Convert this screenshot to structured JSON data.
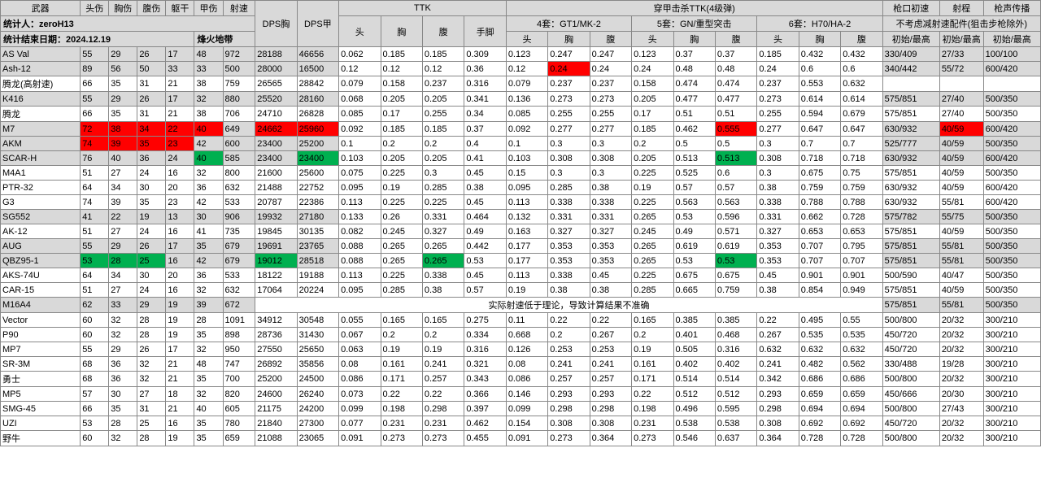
{
  "meta": {
    "title_weapon": "武器",
    "stat_person_label": "统计人：zeroH13",
    "stat_date_label": "统计结束日期：2024.12.19",
    "map_label": "烽火地带"
  },
  "headers": {
    "dmg": [
      "头伤",
      "胸伤",
      "腹伤",
      "躯干",
      "甲伤",
      "射速"
    ],
    "dps": [
      "DPS胸",
      "DPS甲"
    ],
    "ttk_group": "TTK",
    "ttk_sub": [
      "头",
      "胸",
      "腹",
      "手脚"
    ],
    "armor_group": "穿甲击杀TTK(4级弹)",
    "armor_set4": "4套：GT1/MK-2",
    "armor_set5": "5套：GN/重型突击",
    "armor_set6": "6套：H70/HA-2",
    "armor_sub": [
      "头",
      "胸",
      "腹"
    ],
    "velocity": "枪口初速",
    "range": "射程",
    "sound": "枪声传播",
    "velocity_note": "不考虑减射速配件(狙击步枪除外)",
    "init_max": "初始/最高"
  },
  "note_m16": "实际射速低于理论，导致计算结果不准确",
  "rows": [
    {
      "name": "AS Val",
      "gray": true,
      "dmg": [
        55,
        29,
        26,
        17,
        48,
        972
      ],
      "dps": [
        28188,
        46656
      ],
      "ttk": [
        0.062,
        0.185,
        0.185,
        0.309
      ],
      "a4": [
        0.123,
        0.247,
        0.247
      ],
      "a5": [
        0.123,
        0.37,
        0.37
      ],
      "a6": [
        0.185,
        0.432,
        0.432
      ],
      "vel": "330/409",
      "rng": "27/33",
      "snd": "100/100",
      "hl": {}
    },
    {
      "name": "Ash-12",
      "gray": true,
      "dmg": [
        89,
        56,
        50,
        33,
        33,
        500
      ],
      "dps": [
        28000,
        16500
      ],
      "ttk": [
        0.12,
        0.12,
        0.12,
        0.36
      ],
      "a4": [
        0.12,
        0.24,
        0.24
      ],
      "a5": [
        0.24,
        0.48,
        0.48
      ],
      "a6": [
        0.24,
        0.6,
        0.6
      ],
      "vel": "340/442",
      "rng": "55/72",
      "snd": "600/420",
      "hl": {
        "a4.1": "red"
      }
    },
    {
      "name": "腾龙(高射速)",
      "gray": false,
      "dmg": [
        66,
        35,
        31,
        21,
        38,
        759
      ],
      "dps": [
        26565,
        28842
      ],
      "ttk": [
        0.079,
        0.158,
        0.237,
        0.316
      ],
      "a4": [
        0.079,
        0.237,
        0.237
      ],
      "a5": [
        0.158,
        0.474,
        0.474
      ],
      "a6": [
        0.237,
        0.553,
        0.632
      ],
      "vel": "",
      "rng": "",
      "snd": "",
      "hl": {}
    },
    {
      "name": "K416",
      "gray": true,
      "dmg": [
        55,
        29,
        26,
        17,
        32,
        880
      ],
      "dps": [
        25520,
        28160
      ],
      "ttk": [
        0.068,
        0.205,
        0.205,
        0.341
      ],
      "a4": [
        0.136,
        0.273,
        0.273
      ],
      "a5": [
        0.205,
        0.477,
        0.477
      ],
      "a6": [
        0.273,
        0.614,
        0.614
      ],
      "vel": "575/851",
      "rng": "27/40",
      "snd": "500/350",
      "hl": {}
    },
    {
      "name": "腾龙",
      "gray": false,
      "dmg": [
        66,
        35,
        31,
        21,
        38,
        706
      ],
      "dps": [
        24710,
        26828
      ],
      "ttk": [
        0.085,
        0.17,
        0.255,
        0.34
      ],
      "a4": [
        0.085,
        0.255,
        0.255
      ],
      "a5": [
        0.17,
        0.51,
        0.51
      ],
      "a6": [
        0.255,
        0.594,
        0.679
      ],
      "vel": "575/851",
      "rng": "27/40",
      "snd": "500/350",
      "hl": {}
    },
    {
      "name": "M7",
      "gray": true,
      "dmg": [
        72,
        38,
        34,
        22,
        40,
        649
      ],
      "dps": [
        24662,
        25960
      ],
      "ttk": [
        0.092,
        0.185,
        0.185,
        0.37
      ],
      "a4": [
        0.092,
        0.277,
        0.277
      ],
      "a5": [
        0.185,
        0.462,
        0.555
      ],
      "a6": [
        0.277,
        0.647,
        0.647
      ],
      "vel": "630/932",
      "rng": "40/59",
      "snd": "600/420",
      "hl": {
        "dmg.0": "red",
        "dmg.1": "red",
        "dmg.2": "red",
        "dmg.3": "red",
        "dmg.4": "red",
        "dps.0": "red",
        "dps.1": "red",
        "a5.2": "red",
        "rng": "red"
      }
    },
    {
      "name": "AKM",
      "gray": true,
      "dmg": [
        74,
        39,
        35,
        23,
        42,
        600
      ],
      "dps": [
        23400,
        25200
      ],
      "ttk": [
        0.1,
        0.2,
        0.2,
        0.4
      ],
      "a4": [
        0.1,
        0.3,
        0.3
      ],
      "a5": [
        0.2,
        0.5,
        0.5
      ],
      "a6": [
        0.3,
        0.7,
        0.7
      ],
      "vel": "525/777",
      "rng": "40/59",
      "snd": "500/350",
      "hl": {
        "dmg.0": "red",
        "dmg.1": "red",
        "dmg.2": "red",
        "dmg.3": "red"
      }
    },
    {
      "name": "SCAR-H",
      "gray": true,
      "dmg": [
        76,
        40,
        36,
        24,
        40,
        585
      ],
      "dps": [
        23400,
        23400
      ],
      "ttk": [
        0.103,
        0.205,
        0.205,
        0.41
      ],
      "a4": [
        0.103,
        0.308,
        0.308
      ],
      "a5": [
        0.205,
        0.513,
        0.513
      ],
      "a6": [
        0.308,
        0.718,
        0.718
      ],
      "vel": "630/932",
      "rng": "40/59",
      "snd": "600/420",
      "hl": {
        "dmg.4": "green",
        "dps.1": "green",
        "a5.2": "green"
      }
    },
    {
      "name": "M4A1",
      "gray": false,
      "dmg": [
        51,
        27,
        24,
        16,
        32,
        800
      ],
      "dps": [
        21600,
        25600
      ],
      "ttk": [
        0.075,
        0.225,
        0.3,
        0.45
      ],
      "a4": [
        0.15,
        0.3,
        0.3
      ],
      "a5": [
        0.225,
        0.525,
        0.6
      ],
      "a6": [
        0.3,
        0.675,
        0.75
      ],
      "vel": "575/851",
      "rng": "40/59",
      "snd": "500/350",
      "hl": {}
    },
    {
      "name": "PTR-32",
      "gray": false,
      "dmg": [
        64,
        34,
        30,
        20,
        36,
        632
      ],
      "dps": [
        21488,
        22752
      ],
      "ttk": [
        0.095,
        0.19,
        0.285,
        0.38
      ],
      "a4": [
        0.095,
        0.285,
        0.38
      ],
      "a5": [
        0.19,
        0.57,
        0.57
      ],
      "a6": [
        0.38,
        0.759,
        0.759
      ],
      "vel": "630/932",
      "rng": "40/59",
      "snd": "600/420",
      "hl": {}
    },
    {
      "name": "G3",
      "gray": false,
      "dmg": [
        74,
        39,
        35,
        23,
        42,
        533
      ],
      "dps": [
        20787,
        22386
      ],
      "ttk": [
        0.113,
        0.225,
        0.225,
        0.45
      ],
      "a4": [
        0.113,
        0.338,
        0.338
      ],
      "a5": [
        0.225,
        0.563,
        0.563
      ],
      "a6": [
        0.338,
        0.788,
        0.788
      ],
      "vel": "630/932",
      "rng": "55/81",
      "snd": "600/420",
      "hl": {}
    },
    {
      "name": "SG552",
      "gray": true,
      "dmg": [
        41,
        22,
        19,
        13,
        30,
        906
      ],
      "dps": [
        19932,
        27180
      ],
      "ttk": [
        0.133,
        0.26,
        0.331,
        0.464
      ],
      "a4": [
        0.132,
        0.331,
        0.331
      ],
      "a5": [
        0.265,
        0.53,
        0.596
      ],
      "a6": [
        0.331,
        0.662,
        0.728
      ],
      "vel": "575/782",
      "rng": "55/75",
      "snd": "500/350",
      "hl": {}
    },
    {
      "name": "AK-12",
      "gray": false,
      "dmg": [
        51,
        27,
        24,
        16,
        41,
        735
      ],
      "dps": [
        19845,
        30135
      ],
      "ttk": [
        0.082,
        0.245,
        0.327,
        0.49
      ],
      "a4": [
        0.163,
        0.327,
        0.327
      ],
      "a5": [
        0.245,
        0.49,
        0.571
      ],
      "a6": [
        0.327,
        0.653,
        0.653
      ],
      "vel": "575/851",
      "rng": "40/59",
      "snd": "500/350",
      "hl": {}
    },
    {
      "name": "AUG",
      "gray": true,
      "dmg": [
        55,
        29,
        26,
        17,
        35,
        679
      ],
      "dps": [
        19691,
        23765
      ],
      "ttk": [
        0.088,
        0.265,
        0.265,
        0.442
      ],
      "a4": [
        0.177,
        0.353,
        0.353
      ],
      "a5": [
        0.265,
        0.619,
        0.619
      ],
      "a6": [
        0.353,
        0.707,
        0.795
      ],
      "vel": "575/851",
      "rng": "55/81",
      "snd": "500/350",
      "hl": {}
    },
    {
      "name": "QBZ95-1",
      "gray": true,
      "dmg": [
        53,
        28,
        25,
        16,
        42,
        679
      ],
      "dps": [
        19012,
        28518
      ],
      "ttk": [
        0.088,
        0.265,
        0.265,
        0.53
      ],
      "a4": [
        0.177,
        0.353,
        0.353
      ],
      "a5": [
        0.265,
        0.53,
        0.53
      ],
      "a6": [
        0.353,
        0.707,
        0.707
      ],
      "vel": "575/851",
      "rng": "55/81",
      "snd": "500/350",
      "hl": {
        "dmg.0": "green",
        "dmg.1": "green",
        "dmg.2": "green",
        "dps.0": "green",
        "ttk.2": "green",
        "a5.2": "green"
      }
    },
    {
      "name": "AKS-74U",
      "gray": false,
      "dmg": [
        64,
        34,
        30,
        20,
        36,
        533
      ],
      "dps": [
        18122,
        19188
      ],
      "ttk": [
        0.113,
        0.225,
        0.338,
        0.45
      ],
      "a4": [
        0.113,
        0.338,
        0.45
      ],
      "a5": [
        0.225,
        0.675,
        0.675
      ],
      "a6": [
        0.45,
        0.901,
        0.901
      ],
      "vel": "500/590",
      "rng": "40/47",
      "snd": "500/350",
      "hl": {}
    },
    {
      "name": "CAR-15",
      "gray": false,
      "dmg": [
        51,
        27,
        24,
        16,
        32,
        632
      ],
      "dps": [
        17064,
        20224
      ],
      "ttk": [
        0.095,
        0.285,
        0.38,
        0.57
      ],
      "a4": [
        0.19,
        0.38,
        0.38
      ],
      "a5": [
        0.285,
        0.665,
        0.759
      ],
      "a6": [
        0.38,
        0.854,
        0.949
      ],
      "vel": "575/851",
      "rng": "40/59",
      "snd": "500/350",
      "hl": {}
    },
    {
      "name": "M16A4",
      "gray": true,
      "dmg": [
        62,
        33,
        29,
        19,
        39,
        672
      ],
      "dps": [
        "NOTE"
      ],
      "ttk": [],
      "a4": [],
      "a5": [],
      "a6": [],
      "vel": "575/851",
      "rng": "55/81",
      "snd": "500/350",
      "hl": {},
      "note": true
    },
    {
      "name": "Vector",
      "gray": false,
      "dmg": [
        60,
        32,
        28,
        19,
        28,
        1091
      ],
      "dps": [
        34912,
        30548
      ],
      "ttk": [
        0.055,
        0.165,
        0.165,
        0.275
      ],
      "a4": [
        0.11,
        0.22,
        0.22
      ],
      "a5": [
        0.165,
        0.385,
        0.385
      ],
      "a6": [
        0.22,
        0.495,
        0.55
      ],
      "vel": "500/800",
      "rng": "20/32",
      "snd": "300/210",
      "hl": {}
    },
    {
      "name": "P90",
      "gray": false,
      "dmg": [
        60,
        32,
        28,
        19,
        35,
        898
      ],
      "dps": [
        28736,
        31430
      ],
      "ttk": [
        0.067,
        0.2,
        0.2,
        0.334
      ],
      "a4": [
        0.668,
        0.2,
        0.267
      ],
      "a5": [
        0.2,
        0.401,
        0.468
      ],
      "a6": [
        0.267,
        0.535,
        0.535
      ],
      "vel": "450/720",
      "rng": "20/32",
      "snd": "300/210",
      "hl": {}
    },
    {
      "name": "MP7",
      "gray": false,
      "dmg": [
        55,
        29,
        26,
        17,
        32,
        950
      ],
      "dps": [
        27550,
        25650
      ],
      "ttk": [
        0.063,
        0.19,
        0.19,
        0.316
      ],
      "a4": [
        0.126,
        0.253,
        0.253
      ],
      "a5": [
        0.19,
        0.505,
        0.316
      ],
      "a6": [
        0.632,
        0.632,
        0.632
      ],
      "vel": "450/720",
      "rng": "20/32",
      "snd": "300/210",
      "hl": {}
    },
    {
      "name": "SR-3M",
      "gray": false,
      "dmg": [
        68,
        36,
        32,
        21,
        48,
        747
      ],
      "dps": [
        26892,
        35856
      ],
      "ttk": [
        0.08,
        0.161,
        0.241,
        0.321
      ],
      "a4": [
        0.08,
        0.241,
        0.241
      ],
      "a5": [
        0.161,
        0.402,
        0.402
      ],
      "a6": [
        0.241,
        0.482,
        0.562
      ],
      "vel": "330/488",
      "rng": "19/28",
      "snd": "300/210",
      "hl": {}
    },
    {
      "name": "勇士",
      "gray": false,
      "dmg": [
        68,
        36,
        32,
        21,
        35,
        700
      ],
      "dps": [
        25200,
        24500
      ],
      "ttk": [
        0.086,
        0.171,
        0.257,
        0.343
      ],
      "a4": [
        0.086,
        0.257,
        0.257
      ],
      "a5": [
        0.171,
        0.514,
        0.514
      ],
      "a6": [
        0.342,
        0.686,
        0.686
      ],
      "vel": "500/800",
      "rng": "20/32",
      "snd": "300/210",
      "hl": {}
    },
    {
      "name": "MP5",
      "gray": false,
      "dmg": [
        57,
        30,
        27,
        18,
        32,
        820
      ],
      "dps": [
        24600,
        26240
      ],
      "ttk": [
        0.073,
        0.22,
        0.22,
        0.366
      ],
      "a4": [
        0.146,
        0.293,
        0.293
      ],
      "a5": [
        0.22,
        0.512,
        0.512
      ],
      "a6": [
        0.293,
        0.659,
        0.659
      ],
      "vel": "450/666",
      "rng": "20/30",
      "snd": "300/210",
      "hl": {}
    },
    {
      "name": "SMG-45",
      "gray": false,
      "dmg": [
        66,
        35,
        31,
        21,
        40,
        605
      ],
      "dps": [
        21175,
        24200
      ],
      "ttk": [
        0.099,
        0.198,
        0.298,
        0.397
      ],
      "a4": [
        0.099,
        0.298,
        0.298
      ],
      "a5": [
        0.198,
        0.496,
        0.595
      ],
      "a6": [
        0.298,
        0.694,
        0.694
      ],
      "vel": "500/800",
      "rng": "27/43",
      "snd": "300/210",
      "hl": {}
    },
    {
      "name": "UZI",
      "gray": false,
      "dmg": [
        53,
        28,
        25,
        16,
        35,
        780
      ],
      "dps": [
        21840,
        27300
      ],
      "ttk": [
        0.077,
        0.231,
        0.231,
        0.462
      ],
      "a4": [
        0.154,
        0.308,
        0.308
      ],
      "a5": [
        0.231,
        0.538,
        0.538
      ],
      "a6": [
        0.308,
        0.692,
        0.692
      ],
      "vel": "450/720",
      "rng": "20/32",
      "snd": "300/210",
      "hl": {}
    },
    {
      "name": "野牛",
      "gray": false,
      "dmg": [
        60,
        32,
        28,
        19,
        35,
        659
      ],
      "dps": [
        21088,
        23065
      ],
      "ttk": [
        0.091,
        0.273,
        0.273,
        0.455
      ],
      "a4": [
        0.091,
        0.273,
        0.364
      ],
      "a5": [
        0.273,
        0.546,
        0.637
      ],
      "a6": [
        0.364,
        0.728,
        0.728
      ],
      "vel": "500/800",
      "rng": "20/32",
      "snd": "300/210",
      "hl": {}
    }
  ]
}
